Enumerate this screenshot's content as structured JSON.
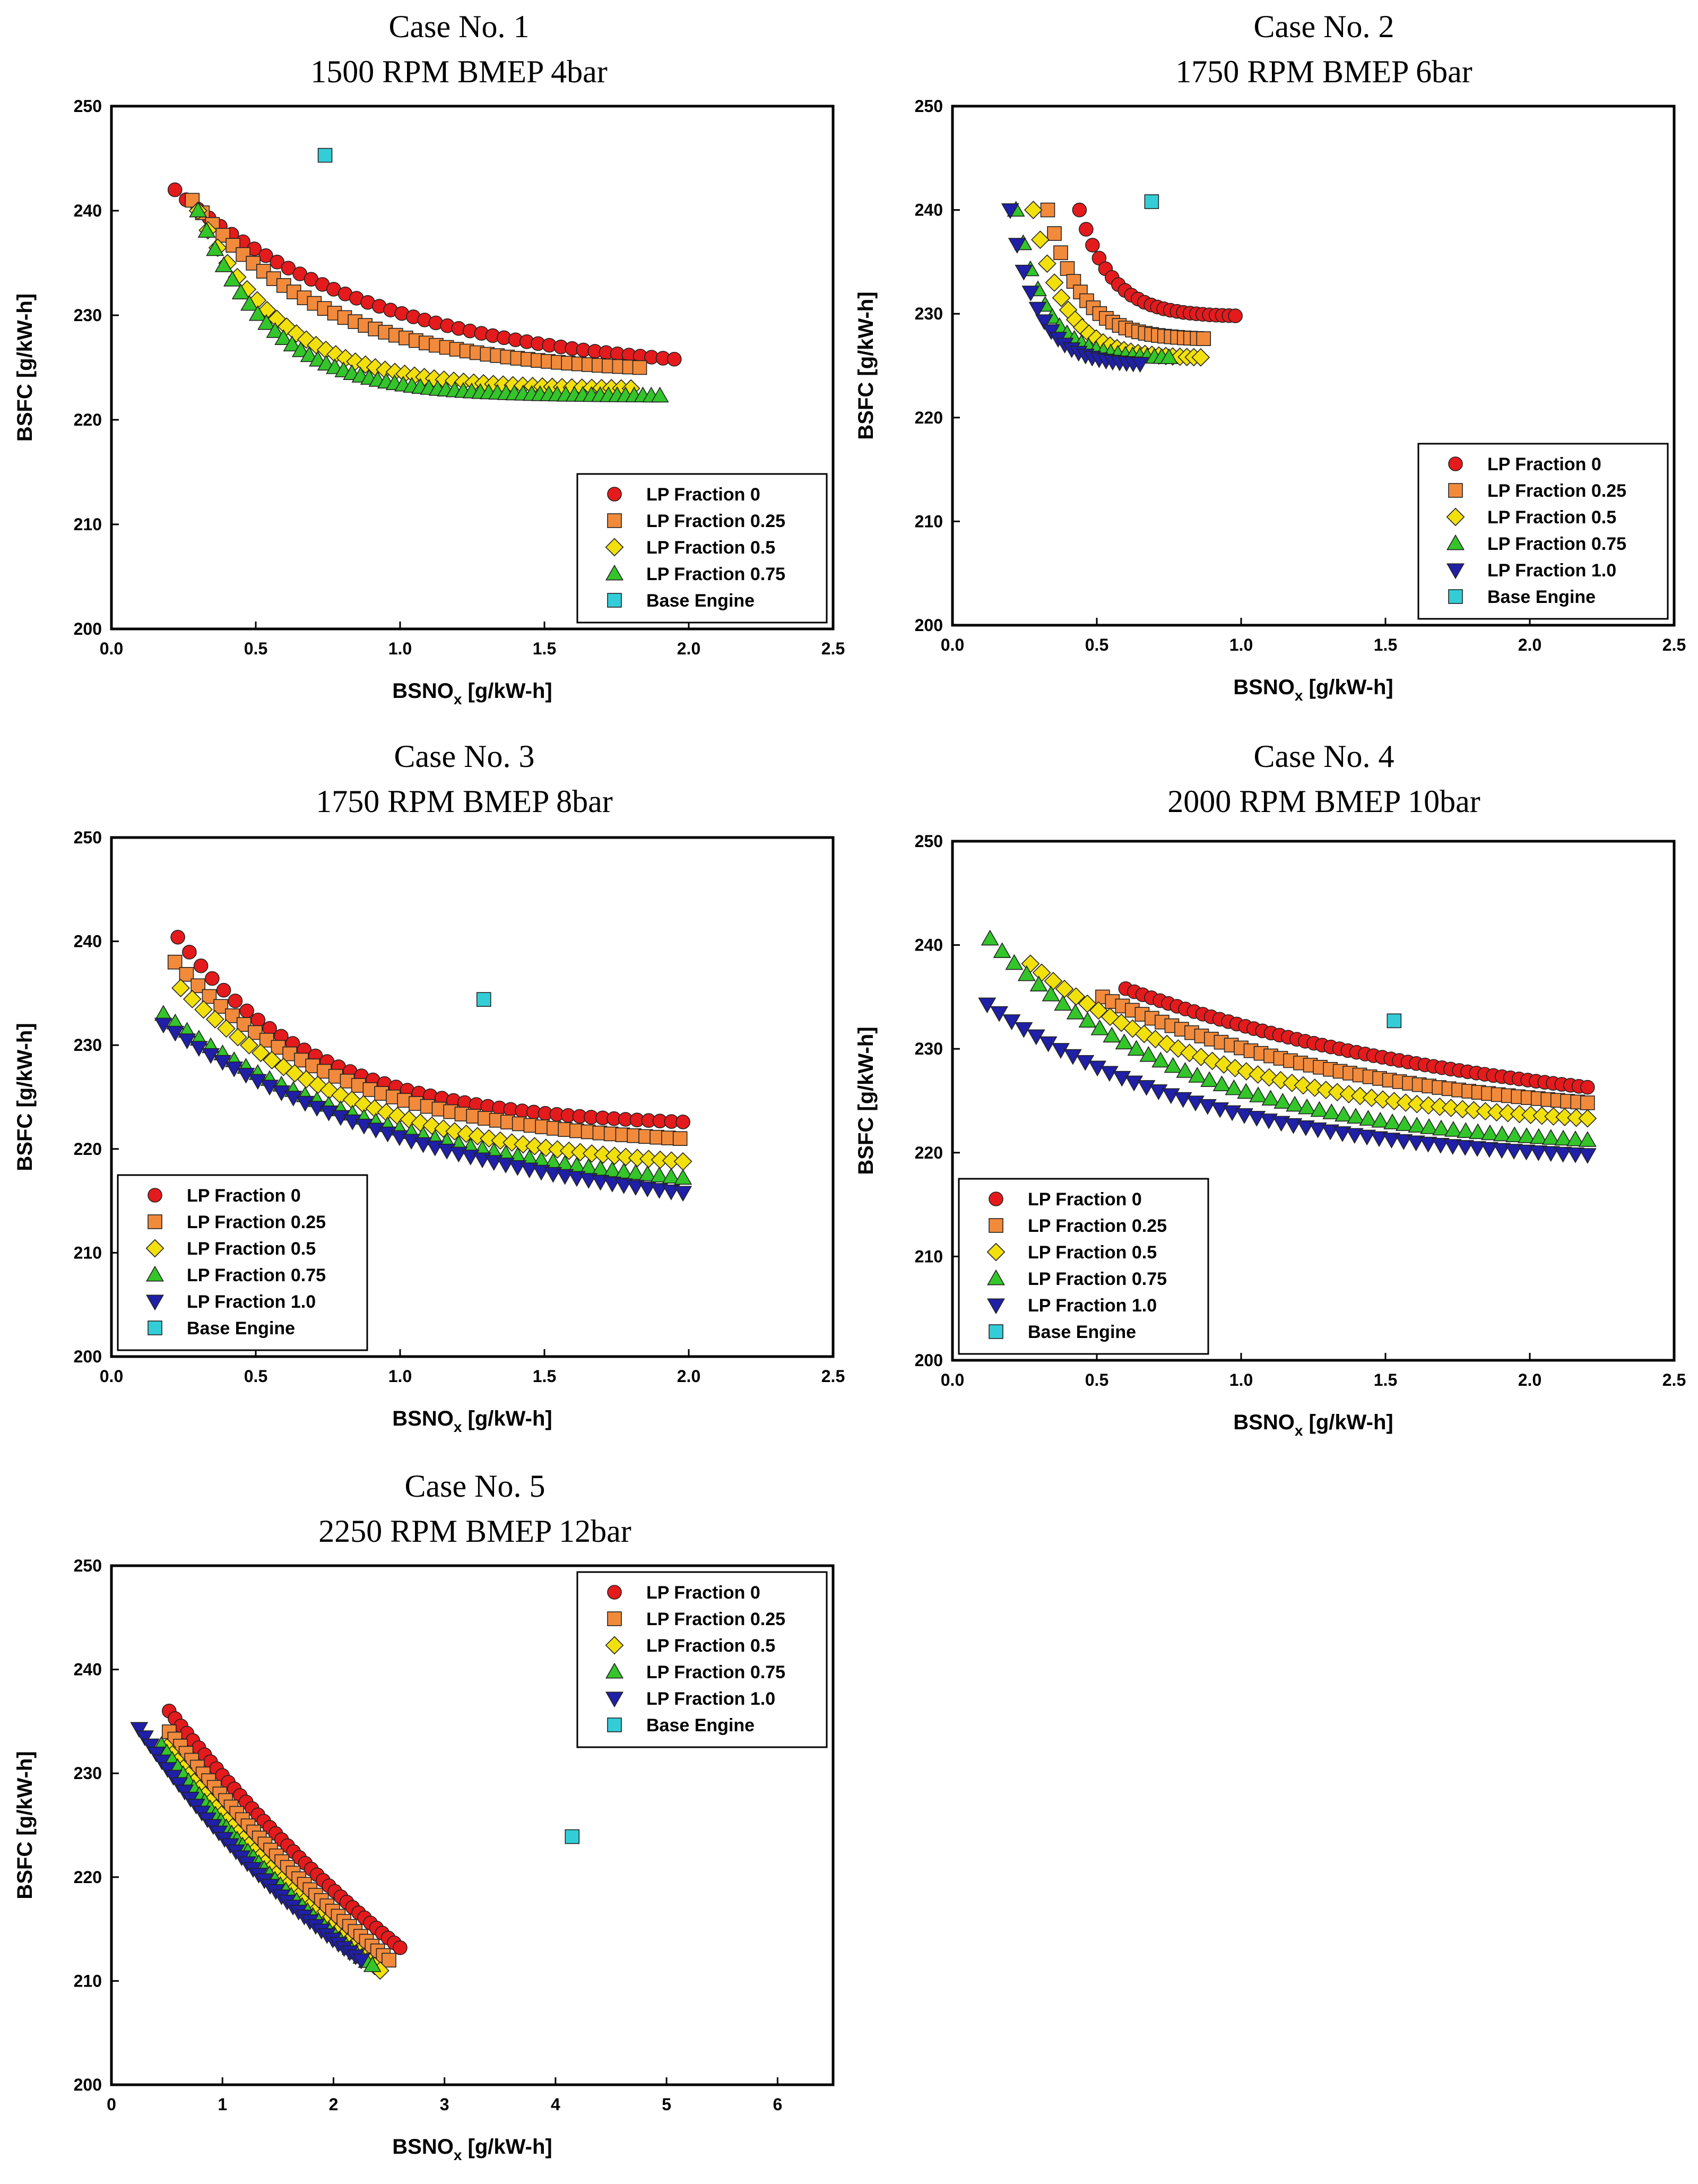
{
  "figure_title": "",
  "series_styles": {
    "LP Fraction 0": {
      "marker": "circle",
      "color": "#e41a1c"
    },
    "LP Fraction 0.25": {
      "marker": "square",
      "color": "#f28a3c"
    },
    "LP Fraction 0.5": {
      "marker": "diamond",
      "color": "#f2e00c"
    },
    "LP Fraction 0.75": {
      "marker": "triangle-up",
      "color": "#33c52a"
    },
    "LP Fraction 1.0": {
      "marker": "triangle-down",
      "color": "#1f1fa8"
    },
    "Base Engine": {
      "marker": "square",
      "color": "#33cdd8"
    }
  },
  "chart_data": [
    {
      "type": "scatter",
      "title": [
        "Case No. 1",
        "1500 RPM BMEP 4bar"
      ],
      "xlabel": "BSNOx [g/kW-h]",
      "ylabel": "BSFC [g/kW-h]",
      "xlim": [
        0,
        2.5
      ],
      "ylim": [
        200,
        250
      ],
      "xticks": [
        "0.0",
        "0.5",
        "1.0",
        "1.5",
        "2.0",
        "2.5"
      ],
      "yticks": [
        "200",
        "210",
        "220",
        "230",
        "240",
        "250"
      ],
      "legend": "bottom-right",
      "series": [
        {
          "name": "LP Fraction 0",
          "x_range": [
            0.22,
            1.95
          ],
          "y_range": [
            242,
            225.8
          ],
          "curve": 0.8,
          "n": 45
        },
        {
          "name": "LP Fraction 0.25",
          "x_range": [
            0.28,
            1.83
          ],
          "y_range": [
            241,
            225
          ],
          "curve": 1.1,
          "n": 45
        },
        {
          "name": "LP Fraction 0.5",
          "x_range": [
            0.3,
            1.8
          ],
          "y_range": [
            240,
            223
          ],
          "curve": 1.7,
          "n": 45
        },
        {
          "name": "LP Fraction 0.75",
          "x_range": [
            0.3,
            1.9
          ],
          "y_range": [
            240,
            222.3
          ],
          "curve": 2.1,
          "n": 55
        },
        {
          "name": "Base Engine",
          "points": [
            [
              0.74,
              245.3
            ]
          ]
        }
      ]
    },
    {
      "type": "scatter",
      "title": [
        "Case No. 2",
        "1750 RPM BMEP 6bar"
      ],
      "xlabel": "BSNOx [g/kW-h]",
      "ylabel": "BSFC [g/kW-h]",
      "xlim": [
        0,
        2.5
      ],
      "ylim": [
        200,
        250
      ],
      "xticks": [
        "0.0",
        "0.5",
        "1.0",
        "1.5",
        "2.0",
        "2.5"
      ],
      "yticks": [
        "200",
        "210",
        "220",
        "230",
        "240",
        "250"
      ],
      "legend": "bottom-right",
      "series": [
        {
          "name": "LP Fraction 0",
          "x_range": [
            0.44,
            0.98
          ],
          "y_range": [
            240,
            229.8
          ],
          "curve": 1.6,
          "n": 25
        },
        {
          "name": "LP Fraction 0.25",
          "x_range": [
            0.33,
            0.87
          ],
          "y_range": [
            240,
            227.6
          ],
          "curve": 1.6,
          "n": 25
        },
        {
          "name": "LP Fraction 0.5",
          "x_range": [
            0.28,
            0.86
          ],
          "y_range": [
            240,
            225.8
          ],
          "curve": 1.8,
          "n": 25
        },
        {
          "name": "LP Fraction 0.75",
          "x_range": [
            0.22,
            0.75
          ],
          "y_range": [
            240,
            225.8
          ],
          "curve": 1.8,
          "n": 22
        },
        {
          "name": "LP Fraction 1.0",
          "x_range": [
            0.2,
            0.65
          ],
          "y_range": [
            240,
            225.2
          ],
          "curve": 1.6,
          "n": 20
        },
        {
          "name": "Base Engine",
          "points": [
            [
              0.69,
              240.8
            ]
          ]
        }
      ]
    },
    {
      "type": "scatter",
      "title": [
        "Case No. 3",
        "1750 RPM BMEP 8bar"
      ],
      "xlabel": "BSNOx [g/kW-h]",
      "ylabel": "BSFC [g/kW-h]",
      "xlim": [
        0,
        2.5
      ],
      "ylim": [
        200,
        250
      ],
      "xticks": [
        "0.0",
        "0.5",
        "1.0",
        "1.5",
        "2.0",
        "2.5"
      ],
      "yticks": [
        "200",
        "210",
        "220",
        "230",
        "240",
        "250"
      ],
      "legend": "bottom-left",
      "series": [
        {
          "name": "LP Fraction 0",
          "x_range": [
            0.23,
            1.98
          ],
          "y_range": [
            240.4,
            222.6
          ],
          "curve": 1.2,
          "n": 45
        },
        {
          "name": "LP Fraction 0.25",
          "x_range": [
            0.22,
            1.97
          ],
          "y_range": [
            238,
            221
          ],
          "curve": 1.0,
          "n": 45
        },
        {
          "name": "LP Fraction 0.5",
          "x_range": [
            0.24,
            1.98
          ],
          "y_range": [
            235.5,
            218.8
          ],
          "curve": 0.9,
          "n": 45
        },
        {
          "name": "LP Fraction 0.75",
          "x_range": [
            0.18,
            1.98
          ],
          "y_range": [
            233,
            217.2
          ],
          "curve": 0.7,
          "n": 45
        },
        {
          "name": "LP Fraction 1.0",
          "x_range": [
            0.18,
            1.98
          ],
          "y_range": [
            232,
            215.8
          ],
          "curve": 0.6,
          "n": 45
        },
        {
          "name": "Base Engine",
          "points": [
            [
              1.29,
              234.4
            ]
          ]
        }
      ]
    },
    {
      "type": "scatter",
      "title": [
        "Case No. 4",
        "2000 RPM BMEP 10bar"
      ],
      "xlabel": "BSNOx [g/kW-h]",
      "ylabel": "BSFC [g/kW-h]",
      "xlim": [
        0,
        2.5
      ],
      "ylim": [
        200,
        250
      ],
      "xticks": [
        "0.0",
        "0.5",
        "1.0",
        "1.5",
        "2.0",
        "2.5"
      ],
      "yticks": [
        "200",
        "210",
        "220",
        "230",
        "240",
        "250"
      ],
      "legend": "bottom-left",
      "series": [
        {
          "name": "LP Fraction 0",
          "x_range": [
            0.6,
            2.2
          ],
          "y_range": [
            235.8,
            226.3
          ],
          "curve": 0.4,
          "n": 55
        },
        {
          "name": "LP Fraction 0.25",
          "x_range": [
            0.52,
            2.2
          ],
          "y_range": [
            235,
            224.8
          ],
          "curve": 0.6,
          "n": 50
        },
        {
          "name": "LP Fraction 0.5",
          "x_range": [
            0.27,
            2.2
          ],
          "y_range": [
            238.2,
            223.3
          ],
          "curve": 0.9,
          "n": 50
        },
        {
          "name": "LP Fraction 0.75",
          "x_range": [
            0.13,
            2.2
          ],
          "y_range": [
            240.6,
            221.2
          ],
          "curve": 1.0,
          "n": 50
        },
        {
          "name": "LP Fraction 1.0",
          "x_range": [
            0.12,
            2.2
          ],
          "y_range": [
            234.3,
            219.8
          ],
          "curve": 0.9,
          "n": 50
        },
        {
          "name": "Base Engine",
          "points": [
            [
              1.53,
              232.7
            ]
          ]
        }
      ]
    },
    {
      "type": "scatter",
      "title": [
        "Case No. 5",
        "2250 RPM BMEP 12bar"
      ],
      "xlabel": "BSNOx [g/kW-h]",
      "ylabel": "BSFC [g/kW-h]",
      "xlim": [
        0,
        6.5
      ],
      "ylim": [
        200,
        250
      ],
      "xticks": [
        "0",
        "1",
        "2",
        "3",
        "4",
        "5",
        "6"
      ],
      "xtick_values": [
        0,
        1,
        2,
        3,
        4,
        5,
        6
      ],
      "yticks": [
        "200",
        "210",
        "220",
        "230",
        "240",
        "250"
      ],
      "legend": "top-right",
      "series": [
        {
          "name": "LP Fraction 0",
          "x_range": [
            0.52,
            2.6
          ],
          "y_range": [
            236,
            213.2
          ],
          "curve": 0.15,
          "n": 40
        },
        {
          "name": "LP Fraction 0.25",
          "x_range": [
            0.52,
            2.5
          ],
          "y_range": [
            234,
            212
          ],
          "curve": 0.15,
          "n": 40
        },
        {
          "name": "LP Fraction 0.5",
          "x_range": [
            0.5,
            2.42
          ],
          "y_range": [
            232.5,
            211
          ],
          "curve": 0.15,
          "n": 40
        },
        {
          "name": "LP Fraction 0.75",
          "x_range": [
            0.45,
            2.35
          ],
          "y_range": [
            232.7,
            211.5
          ],
          "curve": 0.2,
          "n": 40
        },
        {
          "name": "LP Fraction 1.0",
          "x_range": [
            0.25,
            2.25
          ],
          "y_range": [
            234.3,
            212
          ],
          "curve": 0.25,
          "n": 40
        },
        {
          "name": "Base Engine",
          "points": [
            [
              4.15,
              223.9
            ]
          ]
        }
      ]
    }
  ]
}
